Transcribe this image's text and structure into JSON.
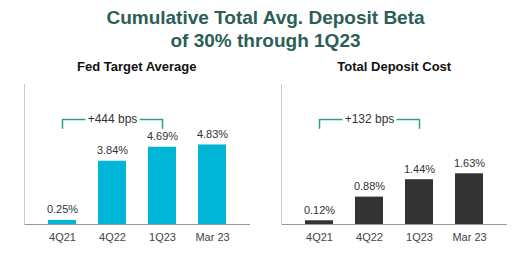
{
  "title": "Cumulative Total Avg. Deposit Beta\nof 30% through 1Q23",
  "chart_data": [
    {
      "type": "bar",
      "title": "Fed Target Average",
      "categories": [
        "4Q21",
        "4Q22",
        "1Q23",
        "Mar 23"
      ],
      "values": [
        0.25,
        3.84,
        4.69,
        4.83
      ],
      "value_labels": [
        "0.25%",
        "3.84%",
        "4.69%",
        "4.83%"
      ],
      "color": "#00b5d6",
      "ylim": [
        0,
        8.5
      ],
      "data_labels": true,
      "tick_labels": "x",
      "annotation": {
        "text": "+444 bps",
        "from": "4Q21",
        "to": "1Q23"
      }
    },
    {
      "type": "bar",
      "title": "Total Deposit Cost",
      "categories": [
        "4Q21",
        "4Q22",
        "1Q23",
        "Mar 23"
      ],
      "values": [
        0.12,
        0.88,
        1.44,
        1.63
      ],
      "value_labels": [
        "0.12%",
        "0.88%",
        "1.44%",
        "1.63%"
      ],
      "color": "#333333",
      "ylim": [
        0,
        4.5
      ],
      "data_labels": true,
      "tick_labels": "x",
      "annotation": {
        "text": "+132 bps",
        "from": "4Q21",
        "to": "1Q23"
      }
    }
  ]
}
